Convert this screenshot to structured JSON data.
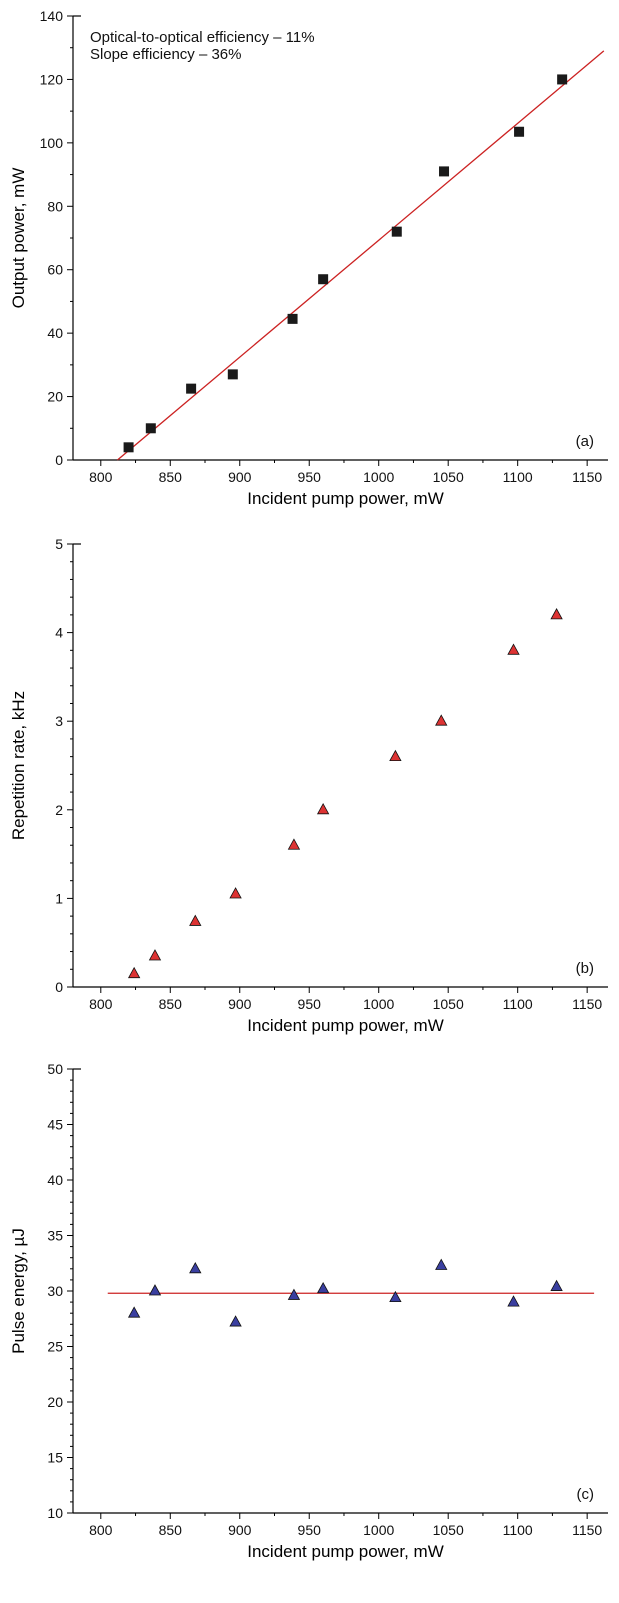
{
  "chart_data": [
    {
      "type": "scatter",
      "panel_label": "(a)",
      "xlabel": "Incident pump power, mW",
      "ylabel": "Output power, mW",
      "xlim": [
        780,
        1165
      ],
      "ylim": [
        0,
        140
      ],
      "xticks": [
        800,
        850,
        900,
        950,
        1000,
        1050,
        1100,
        1150
      ],
      "yticks": [
        0,
        20,
        40,
        60,
        80,
        100,
        120,
        140
      ],
      "grid": false,
      "annotations": [
        "Optical-to-optical efficiency – 11%",
        "Slope efficiency – 36%"
      ],
      "series": [
        {
          "marker": "square",
          "color": "#1a1a1a",
          "x": [
            820,
            836,
            865,
            895,
            938,
            960,
            1013,
            1047,
            1101,
            1132
          ],
          "y": [
            4,
            10,
            22.5,
            27,
            44.5,
            57,
            72,
            91,
            103.5,
            120
          ]
        }
      ],
      "fit_line": {
        "color": "#cc2222",
        "x": [
          812,
          1162
        ],
        "y": [
          0,
          129
        ]
      }
    },
    {
      "type": "scatter",
      "panel_label": "(b)",
      "xlabel": "Incident pump power, mW",
      "ylabel": "Repetition rate, kHz",
      "xlim": [
        780,
        1165
      ],
      "ylim": [
        0,
        5
      ],
      "xticks": [
        800,
        850,
        900,
        950,
        1000,
        1050,
        1100,
        1150
      ],
      "yticks": [
        0,
        1,
        2,
        3,
        4,
        5
      ],
      "grid": false,
      "series": [
        {
          "marker": "triangle",
          "color": "#dd3333",
          "x": [
            824,
            839,
            868,
            897,
            939,
            960,
            1012,
            1045,
            1097,
            1128
          ],
          "y": [
            0.15,
            0.35,
            0.74,
            1.05,
            1.6,
            2.0,
            2.6,
            3.0,
            3.8,
            4.2
          ]
        }
      ]
    },
    {
      "type": "scatter",
      "panel_label": "(c)",
      "xlabel": "Incident pump power, mW",
      "ylabel": "Pulse energy, µJ",
      "xlim": [
        780,
        1165
      ],
      "ylim": [
        10,
        50
      ],
      "xticks": [
        800,
        850,
        900,
        950,
        1000,
        1050,
        1100,
        1150
      ],
      "yticks": [
        10,
        15,
        20,
        25,
        30,
        35,
        40,
        45,
        50
      ],
      "grid": false,
      "series": [
        {
          "marker": "triangle",
          "color": "#3a3fa0",
          "x": [
            824,
            839,
            868,
            897,
            939,
            960,
            1012,
            1045,
            1097,
            1128
          ],
          "y": [
            28.0,
            30.0,
            32.0,
            27.2,
            29.6,
            30.2,
            29.4,
            32.3,
            29.0,
            30.4
          ]
        }
      ],
      "fit_line": {
        "color": "#cc2222",
        "x": [
          805,
          1155
        ],
        "y": [
          29.8,
          29.8
        ]
      }
    }
  ]
}
